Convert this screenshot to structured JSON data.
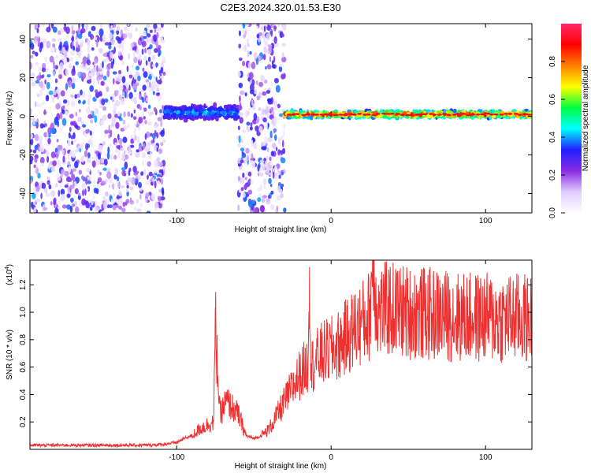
{
  "chart_data": [
    {
      "type": "heatmap",
      "title": "C2E3.2024.320.01.53.E30",
      "xlabel": "Height of straight line (km)",
      "ylabel": "Frequency (Hz)",
      "xlim": [
        -195,
        130
      ],
      "ylim": [
        -50,
        48
      ],
      "xticks": [
        "-100",
        "0",
        "100"
      ],
      "yticks": [
        "-40",
        "-20",
        "0",
        "20",
        "40"
      ],
      "colorbar": {
        "label": "Normalized spectral amplitude",
        "range": [
          0,
          1
        ],
        "ticks": [
          "0.0",
          "0.2",
          "0.4",
          "0.6",
          "0.8"
        ],
        "colors": [
          "#ffffff",
          "#e0ccff",
          "#8a2be2",
          "#2020ff",
          "#00ffff",
          "#00ff40",
          "#ffff00",
          "#ff8000",
          "#ff0000",
          "#ff2a6a"
        ]
      },
      "regions": [
        {
          "x_from": -195,
          "x_to": -108,
          "pattern": "broadband noise",
          "level": 0.2
        },
        {
          "x_from": -108,
          "x_to": -60,
          "pattern": "centered near 0 Hz",
          "center_hz": 2,
          "level": 0.35
        },
        {
          "x_from": -60,
          "x_to": -30,
          "pattern": "broadband noise",
          "level": 0.2
        },
        {
          "x_from": -30,
          "x_to": 130,
          "pattern": "narrow line near 0 Hz",
          "center_hz": 1,
          "level": 0.9
        }
      ]
    },
    {
      "type": "line",
      "xlabel": "Height of straight line (km)",
      "ylabel": "SNR (10 * v/v)",
      "y_multiplier": "(x10^4)",
      "y_multiplier_base": "(x10",
      "y_multiplier_exp": "4",
      "xlim": [
        -195,
        130
      ],
      "ylim": [
        0,
        1.38
      ],
      "xticks": [
        "-100",
        "0",
        "100"
      ],
      "yticks": [
        "0.2",
        "0.4",
        "0.6",
        "0.8",
        "1.0",
        "1.2"
      ],
      "color": "#ee3030",
      "series": [
        {
          "x": [
            -195,
            -180,
            -160,
            -140,
            -120,
            -110,
            -100,
            -95,
            -90,
            -85,
            -80,
            -76,
            -75,
            -72,
            -70,
            -68,
            -65,
            -60,
            -55,
            -50,
            -45,
            -40,
            -35,
            -30,
            -25,
            -20,
            -15,
            -14,
            -13,
            -10,
            -5,
            0,
            5,
            10,
            15,
            20,
            25,
            27,
            30,
            35,
            40,
            45,
            50,
            60,
            70,
            80,
            90,
            100,
            110,
            120,
            130
          ],
          "y": [
            0.03,
            0.03,
            0.03,
            0.03,
            0.03,
            0.035,
            0.05,
            0.08,
            0.1,
            0.15,
            0.18,
            0.2,
            0.92,
            0.25,
            0.3,
            0.35,
            0.32,
            0.25,
            0.1,
            0.08,
            0.1,
            0.15,
            0.25,
            0.35,
            0.45,
            0.55,
            0.62,
            1.33,
            0.6,
            0.65,
            0.7,
            0.72,
            0.76,
            0.82,
            0.88,
            0.92,
            0.98,
            1.4,
            1.0,
            1.02,
            1.02,
            1.01,
            1.0,
            0.99,
            0.98,
            0.97,
            0.96,
            0.96,
            0.95,
            0.96,
            0.95
          ]
        }
      ]
    }
  ]
}
